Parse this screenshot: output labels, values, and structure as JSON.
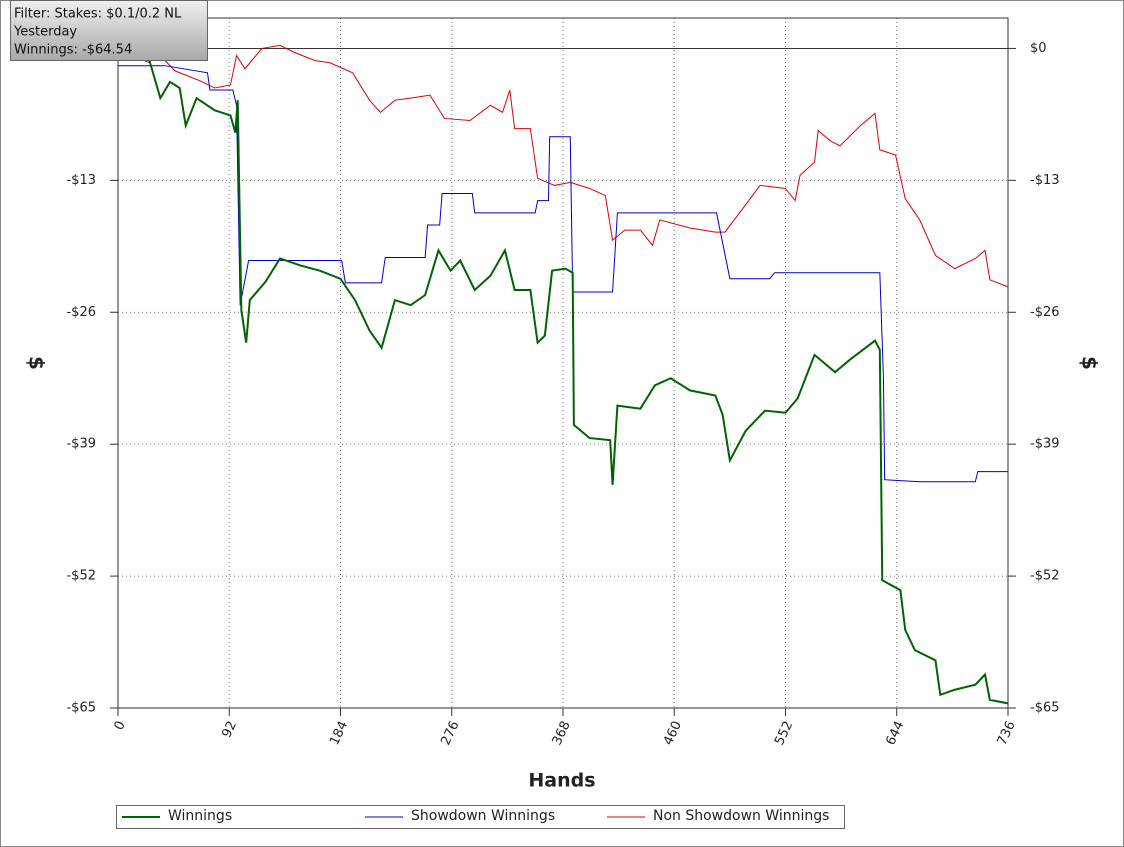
{
  "chart_data": {
    "type": "line",
    "annotations": [
      "Filter: Stakes: $0.1/0.2 NL",
      "Yesterday",
      "Winnings: -$64.54"
    ],
    "xlabel": "Hands",
    "ylabel": "$",
    "xlim": [
      0,
      736
    ],
    "ylim": [
      -65,
      3
    ],
    "xticks": [
      0,
      92,
      184,
      276,
      368,
      460,
      552,
      644,
      736
    ],
    "yticks": [
      {
        "value": 0,
        "label": "$0"
      },
      {
        "value": -13,
        "label": "-$13"
      },
      {
        "value": -26,
        "label": "-$26"
      },
      {
        "value": -39,
        "label": "-$39"
      },
      {
        "value": -52,
        "label": "-$52"
      },
      {
        "value": -65,
        "label": "-$65"
      }
    ],
    "grid": true,
    "legend": "bottom",
    "series": [
      {
        "name": "Winnings",
        "color": "#006400",
        "x": [
          0,
          26,
          35,
          43,
          51,
          56,
          65,
          80,
          93,
          97,
          99,
          102,
          106,
          109,
          122,
          134,
          151,
          167,
          184,
          196,
          208,
          218,
          229,
          242,
          254,
          265,
          275,
          283,
          295,
          308,
          320,
          328,
          341,
          347,
          353,
          359,
          370,
          376,
          377,
          390,
          407,
          409,
          413,
          432,
          444,
          457,
          473,
          494,
          500,
          506,
          519,
          535,
          552,
          562,
          576,
          593,
          605,
          626,
          630,
          632,
          647,
          651,
          659,
          676,
          680,
          692,
          709,
          717,
          721,
          736
        ],
        "values": [
          0,
          -1.2,
          -4.9,
          -3.3,
          -3.9,
          -7.6,
          -4.9,
          -6.1,
          -6.6,
          -8.3,
          -5.1,
          -25.8,
          -29,
          -24.8,
          -23,
          -20.7,
          -21.4,
          -21.9,
          -22.7,
          -24.8,
          -27.8,
          -29.5,
          -24.8,
          -25.3,
          -24.3,
          -19.9,
          -21.9,
          -20.9,
          -23.8,
          -22.4,
          -19.9,
          -23.8,
          -23.8,
          -29,
          -28.3,
          -21.9,
          -21.7,
          -22.1,
          -37.1,
          -38.4,
          -38.6,
          -43,
          -35.2,
          -35.5,
          -33.2,
          -32.5,
          -33.7,
          -34.2,
          -36.1,
          -40.6,
          -37.7,
          -35.7,
          -35.9,
          -34.5,
          -30.2,
          -31.9,
          -30.7,
          -28.8,
          -29.7,
          -52.4,
          -53.4,
          -57.3,
          -59.3,
          -60.3,
          -63.7,
          -63.2,
          -62.7,
          -61.7,
          -64.2,
          -64.54
        ]
      },
      {
        "name": "Showdown Winnings",
        "color": "#0000cc",
        "x": [
          0,
          39,
          74,
          76,
          95,
          98,
          101,
          108,
          185,
          188,
          218,
          221,
          254,
          256,
          266,
          268,
          293,
          295,
          345,
          347,
          356,
          357,
          374,
          376,
          409,
          413,
          495,
          506,
          539,
          543,
          630,
          633,
          634,
          663,
          709,
          711,
          736
        ],
        "values": [
          -1.7,
          -1.7,
          -2.4,
          -4.1,
          -4.1,
          -5.6,
          -25.3,
          -20.9,
          -20.9,
          -23.1,
          -23.1,
          -20.6,
          -20.6,
          -17.4,
          -17.4,
          -14.3,
          -14.3,
          -16.2,
          -16.2,
          -15,
          -15,
          -8.7,
          -8.7,
          -24,
          -24,
          -16.2,
          -16.2,
          -22.7,
          -22.7,
          -22.1,
          -22.1,
          -32.5,
          -42.5,
          -42.7,
          -42.7,
          -41.7,
          -41.7
        ]
      },
      {
        "name": "Non Showdown Winnings",
        "color": "#e00000",
        "x": [
          0,
          26,
          31,
          47,
          68,
          80,
          93,
          98,
          105,
          119,
          134,
          146,
          163,
          175,
          194,
          208,
          217,
          229,
          242,
          258,
          270,
          291,
          308,
          318,
          324,
          328,
          341,
          347,
          361,
          374,
          390,
          403,
          409,
          419,
          432,
          442,
          448,
          473,
          494,
          502,
          514,
          531,
          552,
          560,
          564,
          576,
          579,
          589,
          597,
          614,
          626,
          630,
          643,
          651,
          663,
          676,
          692,
          709,
          717,
          721,
          736
        ],
        "values": [
          -0.2,
          -1.4,
          -0.2,
          -2.2,
          -3.2,
          -3.9,
          -3.6,
          -0.7,
          -2,
          0,
          0.3,
          -0.4,
          -1.2,
          -1.4,
          -2.4,
          -5.1,
          -6.3,
          -5.1,
          -4.9,
          -4.6,
          -6.9,
          -7.1,
          -5.6,
          -6.3,
          -4.1,
          -7.9,
          -7.9,
          -12.8,
          -13.5,
          -13.2,
          -13.8,
          -14.5,
          -18.9,
          -17.9,
          -17.9,
          -19.4,
          -16.9,
          -17.7,
          -18.1,
          -18.1,
          -16.2,
          -13.5,
          -13.8,
          -15,
          -12.5,
          -11.2,
          -8.1,
          -9.1,
          -9.6,
          -7.6,
          -6.4,
          -10,
          -10.5,
          -14.8,
          -16.9,
          -20.4,
          -21.7,
          -20.7,
          -19.9,
          -22.8,
          -23.5
        ]
      }
    ]
  }
}
